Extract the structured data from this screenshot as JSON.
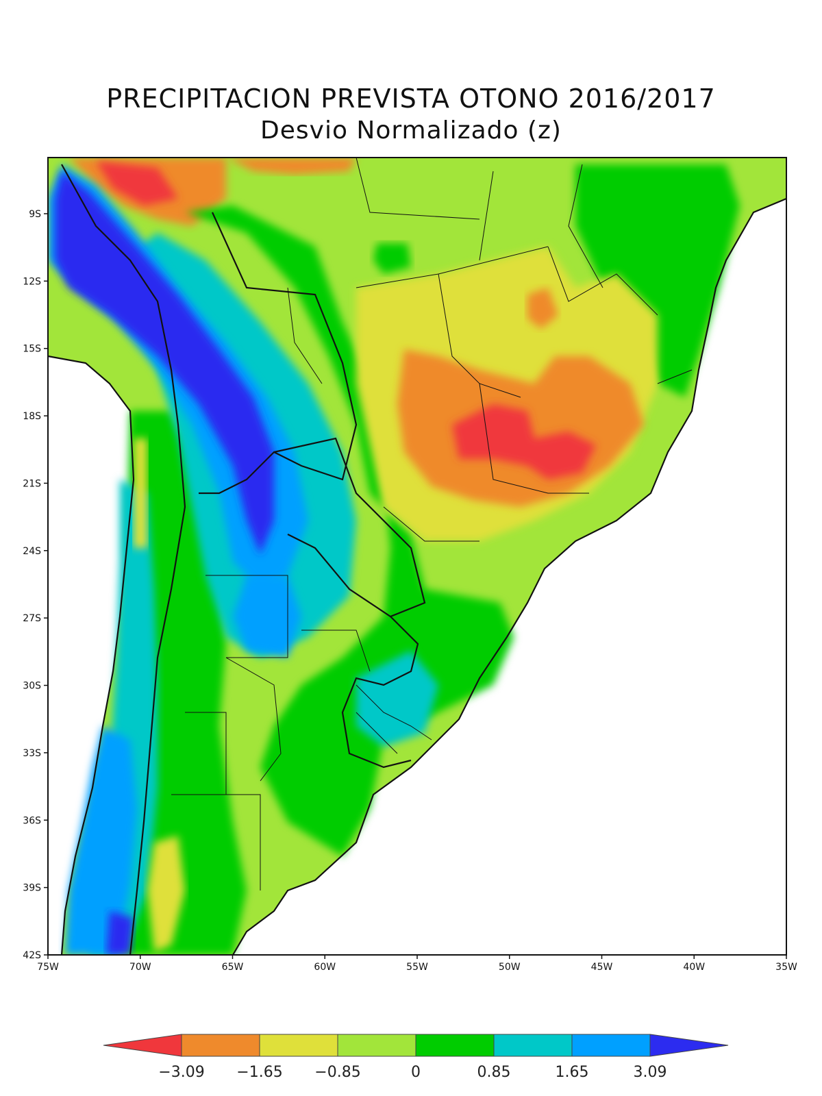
{
  "title": "PRECIPITACION PREVISTA OTONO 2016/2017",
  "subtitle": "Desvio Normalizado (z)",
  "map": {
    "lon_range": [
      -75,
      -35
    ],
    "lat_range": [
      -42,
      -6.5
    ],
    "lat_ticks": [
      "9S",
      "12S",
      "15S",
      "18S",
      "21S",
      "24S",
      "27S",
      "30S",
      "33S",
      "36S",
      "39S",
      "42S"
    ],
    "lon_ticks": [
      "75W",
      "70W",
      "65W",
      "60W",
      "55W",
      "50W",
      "45W",
      "40W",
      "35W"
    ]
  },
  "colorbar": {
    "labels": [
      "-3.09",
      "-1.65",
      "-0.85",
      "0",
      "0.85",
      "1.65",
      "3.09"
    ],
    "colors": [
      "#f0373c",
      "#ef8a2c",
      "#dfe03a",
      "#a2e53a",
      "#00cc00",
      "#00c8c8",
      "#00a0ff",
      "#2c2cf0"
    ]
  },
  "regions": [
    {
      "name": "north-andes-dry",
      "color": "#ef8a2c"
    },
    {
      "name": "southeast-brazil-dry",
      "color": "#ef8a2c"
    },
    {
      "name": "andes-wet-belt",
      "color": "#2c2cf0"
    },
    {
      "name": "chaco-wet",
      "color": "#00a0ff"
    },
    {
      "name": "uruguay-wet",
      "color": "#00c8c8"
    }
  ]
}
